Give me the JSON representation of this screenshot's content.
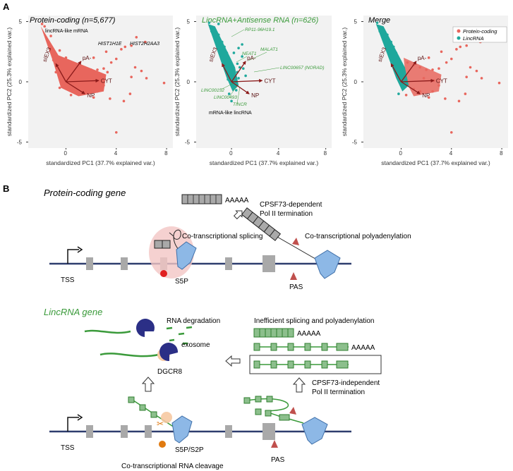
{
  "panel_a": {
    "label": "A",
    "axis_labels": {
      "x": "standardized PC1 (37.7% explained var.)",
      "y": "standardized PC2 (25.3% explained var.)"
    },
    "x_ticks": [
      "0",
      "4",
      "8"
    ],
    "y_ticks": [
      "5",
      "0",
      "-5"
    ],
    "loading_labels": [
      "pA-",
      "CYT",
      "NP",
      "sIEX3"
    ],
    "plots": [
      {
        "title": "Protein-coding (n=5,677)",
        "annotations": [
          "lincRNA-like mRNA",
          "HIST1H1E",
          "HIST2H2AA3"
        ]
      },
      {
        "title": "LincRNA+Antisense RNA (n=626)",
        "annotations": [
          "RP11-96H19.1",
          "NEAT1",
          "MALAT1",
          "LINC00657 (NORAD)",
          "LINC00152",
          "LINC00493",
          "TINCR",
          "mRNA-like lincRNA"
        ]
      },
      {
        "title": "Merge",
        "legend": [
          "Protein-coding",
          "LincRNA"
        ]
      }
    ],
    "colors": {
      "protein": "#e8665d",
      "lincrna": "#1fa89c",
      "loading": "#8b1a1a",
      "panel_bg": "#f2f2f2"
    }
  },
  "chart_data": [
    {
      "type": "scatter",
      "title": "Protein-coding (n=5,677)",
      "xlabel": "standardized PC1 (37.7% explained var.)",
      "ylabel": "standardized PC2 (25.3% explained var.)",
      "xlim": [
        -3,
        8.5
      ],
      "ylim": [
        -5.5,
        5.5
      ],
      "series": [
        {
          "name": "Protein-coding",
          "color": "#e8665d",
          "points": [
            [
              -1.9,
              4.8
            ],
            [
              -1.7,
              4.6
            ],
            [
              -1.2,
              3.8
            ],
            [
              -0.5,
              2.6
            ],
            [
              0,
              2
            ],
            [
              0.5,
              1.6
            ],
            [
              1,
              1.4
            ],
            [
              1.5,
              1.2
            ],
            [
              2,
              1
            ],
            [
              2.5,
              1
            ],
            [
              3,
              1.1
            ],
            [
              3.3,
              0.8
            ],
            [
              3.6,
              1.6
            ],
            [
              4,
              1.9
            ],
            [
              4.4,
              2.7
            ],
            [
              4.7,
              2.9
            ],
            [
              5.2,
              3
            ],
            [
              5.6,
              3.7
            ],
            [
              6.3,
              3.3
            ],
            [
              5.5,
              1.2
            ],
            [
              6,
              0.9
            ],
            [
              5.2,
              0.4
            ],
            [
              6.4,
              0.3
            ],
            [
              7.8,
              -0.1
            ],
            [
              5.1,
              -1
            ],
            [
              4.6,
              -1.6
            ],
            [
              4,
              -4.2
            ],
            [
              3.5,
              -1.4
            ],
            [
              2.5,
              -0.8
            ],
            [
              2.2,
              -1.3
            ],
            [
              1.5,
              -0.8
            ],
            [
              1,
              -0.6
            ],
            [
              0.6,
              -0.4
            ],
            [
              3,
              -0.3
            ],
            [
              2.6,
              0.1
            ],
            [
              1.8,
              0.3
            ],
            [
              1.2,
              0.5
            ],
            [
              0.5,
              0.9
            ],
            [
              2.2,
              2
            ],
            [
              3.2,
              2.5
            ],
            [
              0.4,
              -1.1
            ],
            [
              -0.5,
              -0.5
            ],
            [
              -0.8,
              0.8
            ],
            [
              -1,
              1.8
            ],
            [
              2.8,
              0.5
            ]
          ]
        }
      ]
    },
    {
      "type": "scatter",
      "title": "LincRNA+Antisense RNA (n=626)",
      "xlabel": "standardized PC1 (37.7% explained var.)",
      "ylabel": "standardized PC2 (25.3% explained var.)",
      "xlim": [
        -3,
        8.5
      ],
      "ylim": [
        -5.5,
        5.5
      ],
      "series": [
        {
          "name": "LincRNA",
          "color": "#1fa89c",
          "points": [
            [
              -1.9,
              4.9
            ],
            [
              -1.5,
              4.5
            ],
            [
              -1.1,
              3.9
            ],
            [
              -1.1,
              4.8
            ],
            [
              -0.8,
              3.3
            ],
            [
              -0.6,
              2.9
            ],
            [
              -0.4,
              2.4
            ],
            [
              -0.3,
              2
            ],
            [
              -0.1,
              1.6
            ],
            [
              0.1,
              1.2
            ],
            [
              0.2,
              0.9
            ],
            [
              0.3,
              0.4
            ],
            [
              0.6,
              0.3
            ],
            [
              0.3,
              -0.2
            ],
            [
              0.1,
              -0.4
            ],
            [
              0,
              -1.6
            ],
            [
              -0.2,
              -1
            ],
            [
              0.5,
              1.5
            ],
            [
              0.7,
              1.2
            ],
            [
              1,
              1.1
            ],
            [
              0.9,
              2.1
            ],
            [
              0.6,
              2.8
            ],
            [
              0.9,
              3.1
            ],
            [
              -1.7,
              4.2
            ],
            [
              -1.4,
              3.6
            ],
            [
              -0.9,
              2.6
            ],
            [
              -0.6,
              1.4
            ],
            [
              0.2,
              2.4
            ],
            [
              0.5,
              0.8
            ],
            [
              1.2,
              0.5
            ],
            [
              0.4,
              -0.7
            ],
            [
              -0.3,
              0.2
            ]
          ]
        }
      ]
    },
    {
      "type": "scatter",
      "title": "Merge",
      "xlabel": "standardized PC1 (37.7% explained var.)",
      "ylabel": "standardized PC2 (25.3% explained var.)",
      "xlim": [
        -3,
        8.5
      ],
      "ylim": [
        -5.5,
        5.5
      ],
      "legend": "top-right",
      "series": [
        {
          "name": "Protein-coding",
          "color": "#e8665d",
          "points": [
            [
              0.5,
              1.6
            ],
            [
              1,
              1.4
            ],
            [
              1.5,
              1.2
            ],
            [
              2,
              1
            ],
            [
              2.5,
              1
            ],
            [
              3,
              1.1
            ],
            [
              3.6,
              1.6
            ],
            [
              4,
              1.9
            ],
            [
              4.4,
              2.7
            ],
            [
              4.7,
              2.9
            ],
            [
              5.2,
              3
            ],
            [
              5.6,
              3.7
            ],
            [
              6.3,
              3.3
            ],
            [
              5.5,
              1.2
            ],
            [
              6,
              0.9
            ],
            [
              5.2,
              0.4
            ],
            [
              6.4,
              0.3
            ],
            [
              7.8,
              -0.1
            ],
            [
              5.1,
              -1
            ],
            [
              4.6,
              -1.6
            ],
            [
              4,
              -4.2
            ],
            [
              3.5,
              -1.4
            ],
            [
              2.5,
              -0.8
            ],
            [
              2.2,
              -1.3
            ],
            [
              1.5,
              -0.8
            ],
            [
              1,
              -0.6
            ],
            [
              3,
              -0.3
            ],
            [
              2.6,
              0.1
            ],
            [
              1.8,
              0.3
            ],
            [
              2.2,
              2
            ],
            [
              3.2,
              2.5
            ],
            [
              0.4,
              -1.1
            ]
          ]
        },
        {
          "name": "LincRNA",
          "color": "#1fa89c",
          "points": [
            [
              -1.9,
              4.9
            ],
            [
              -1.5,
              4.5
            ],
            [
              -1.1,
              3.9
            ],
            [
              -0.8,
              3.3
            ],
            [
              -0.6,
              2.9
            ],
            [
              -0.4,
              2.4
            ],
            [
              -0.3,
              2
            ],
            [
              -0.1,
              1.6
            ],
            [
              0.1,
              1.2
            ],
            [
              0.2,
              0.9
            ],
            [
              0.3,
              0.4
            ],
            [
              0.3,
              -0.2
            ],
            [
              0.1,
              -0.4
            ],
            [
              -0.2,
              -1
            ],
            [
              -1.7,
              4.2
            ],
            [
              -1.4,
              3.6
            ],
            [
              -0.9,
              2.6
            ],
            [
              -0.6,
              1.4
            ]
          ]
        }
      ]
    }
  ],
  "panel_b": {
    "label": "B",
    "protein": {
      "title": "Protein-coding gene",
      "transcript_end": "AAAAA",
      "cpsf_line1": "CPSF73-dependent",
      "cpsf_line2": "Pol II termination",
      "splicing": "Co-transcriptional splicing",
      "polyadenylation": "Co-transcriptional polyadenylation",
      "tss": "TSS",
      "s5p": "S5P",
      "pas": "PAS"
    },
    "lincrna": {
      "title": "LincRNA gene",
      "degradation": "RNA degradation",
      "exosome": "exosome",
      "dgcr8": "DGCR8",
      "inefficient": "Inefficient splicing and polyadenylation",
      "transcript_end_1": "AAAAA",
      "transcript_end_2": "AAAAA",
      "cpsf_line1": "CPSF73-independent",
      "cpsf_line2": "Pol II termination",
      "tss": "TSS",
      "s5p_s2p": "S5P/S2P",
      "pas": "PAS",
      "cleavage": "Co-transcriptional RNA cleavage"
    },
    "colors": {
      "dna": "#2e3d6e",
      "exon": "#a9a9a9",
      "polymerase": "#8db8e6",
      "green": "#3a9a3a",
      "exosome": "#2b2f86",
      "splice_halo": "#f3c6c4",
      "red": "#e02020",
      "arrow_red": "#c0504d"
    }
  }
}
